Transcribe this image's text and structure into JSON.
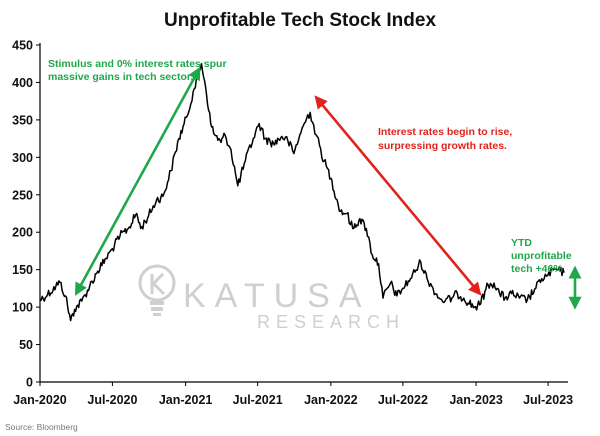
{
  "chart_data": {
    "type": "line",
    "title": "Unprofitable Tech Stock Index",
    "xlabel": "",
    "ylabel": "",
    "ylim": [
      0,
      450
    ],
    "yticks": [
      0,
      50,
      100,
      150,
      200,
      250,
      300,
      350,
      400,
      450
    ],
    "xticks": [
      {
        "label": "Jan-2020",
        "x": "2020-01-01"
      },
      {
        "label": "Jul-2020",
        "x": "2020-07-01"
      },
      {
        "label": "Jan-2021",
        "x": "2021-01-01"
      },
      {
        "label": "Jul-2021",
        "x": "2021-07-01"
      },
      {
        "label": "Jan-2022",
        "x": "2022-01-01"
      },
      {
        "label": "Jul-2022",
        "x": "2022-07-01"
      },
      {
        "label": "Jan-2023",
        "x": "2023-01-01"
      },
      {
        "label": "Jul-2023",
        "x": "2023-07-01"
      }
    ],
    "xlim": [
      "2020-01-01",
      "2023-08-20"
    ],
    "grid": false,
    "series": [
      {
        "name": "",
        "color": "#000000",
        "points": [
          [
            "2020-01-01",
            110
          ],
          [
            "2020-01-20",
            117
          ],
          [
            "2020-02-10",
            128
          ],
          [
            "2020-02-20",
            133
          ],
          [
            "2020-03-05",
            115
          ],
          [
            "2020-03-18",
            82
          ],
          [
            "2020-03-28",
            97
          ],
          [
            "2020-04-15",
            108
          ],
          [
            "2020-05-05",
            128
          ],
          [
            "2020-05-25",
            148
          ],
          [
            "2020-06-15",
            165
          ],
          [
            "2020-07-01",
            178
          ],
          [
            "2020-07-20",
            195
          ],
          [
            "2020-08-10",
            205
          ],
          [
            "2020-08-31",
            225
          ],
          [
            "2020-09-10",
            205
          ],
          [
            "2020-09-30",
            222
          ],
          [
            "2020-10-20",
            243
          ],
          [
            "2020-11-05",
            248
          ],
          [
            "2020-11-25",
            282
          ],
          [
            "2020-12-15",
            325
          ],
          [
            "2021-01-05",
            355
          ],
          [
            "2021-01-20",
            388
          ],
          [
            "2021-02-10",
            425
          ],
          [
            "2021-02-20",
            395
          ],
          [
            "2021-03-05",
            345
          ],
          [
            "2021-03-15",
            330
          ],
          [
            "2021-03-31",
            320
          ],
          [
            "2021-04-10",
            330
          ],
          [
            "2021-04-25",
            310
          ],
          [
            "2021-05-12",
            262
          ],
          [
            "2021-05-31",
            295
          ],
          [
            "2021-06-20",
            325
          ],
          [
            "2021-07-05",
            345
          ],
          [
            "2021-07-20",
            325
          ],
          [
            "2021-08-10",
            318
          ],
          [
            "2021-08-31",
            328
          ],
          [
            "2021-09-15",
            322
          ],
          [
            "2021-09-30",
            305
          ],
          [
            "2021-10-15",
            330
          ],
          [
            "2021-11-01",
            352
          ],
          [
            "2021-11-10",
            360
          ],
          [
            "2021-11-25",
            330
          ],
          [
            "2021-12-15",
            295
          ],
          [
            "2022-01-01",
            272
          ],
          [
            "2022-01-25",
            228
          ],
          [
            "2022-02-10",
            225
          ],
          [
            "2022-02-25",
            205
          ],
          [
            "2022-03-15",
            218
          ],
          [
            "2022-03-31",
            205
          ],
          [
            "2022-04-15",
            170
          ],
          [
            "2022-05-01",
            158
          ],
          [
            "2022-05-12",
            112
          ],
          [
            "2022-05-31",
            132
          ],
          [
            "2022-06-16",
            115
          ],
          [
            "2022-07-01",
            125
          ],
          [
            "2022-07-20",
            138
          ],
          [
            "2022-08-15",
            160
          ],
          [
            "2022-08-31",
            138
          ],
          [
            "2022-09-15",
            125
          ],
          [
            "2022-09-30",
            112
          ],
          [
            "2022-10-15",
            108
          ],
          [
            "2022-11-01",
            112
          ],
          [
            "2022-11-15",
            118
          ],
          [
            "2022-12-01",
            112
          ],
          [
            "2022-12-28",
            100
          ],
          [
            "2023-01-10",
            103
          ],
          [
            "2023-01-31",
            130
          ],
          [
            "2023-02-15",
            132
          ],
          [
            "2023-03-01",
            118
          ],
          [
            "2023-03-15",
            112
          ],
          [
            "2023-03-31",
            118
          ],
          [
            "2023-04-20",
            112
          ],
          [
            "2023-05-10",
            110
          ],
          [
            "2023-05-31",
            125
          ],
          [
            "2023-06-15",
            138
          ],
          [
            "2023-06-30",
            142
          ],
          [
            "2023-07-15",
            150
          ],
          [
            "2023-07-31",
            148
          ],
          [
            "2023-08-10",
            146
          ]
        ]
      }
    ],
    "annotations": [
      {
        "lines": [
          "Stimulus and 0% interest rates spur",
          "massive gains in tech sector."
        ],
        "color": "#1fa84a"
      },
      {
        "lines": [
          "Interest rates begin to rise,",
          "surpressing growth rates."
        ],
        "color": "#e0231c"
      },
      {
        "lines": [
          "YTD",
          "unprofitable",
          "tech +46%"
        ],
        "color": "#1fa84a"
      }
    ]
  },
  "watermark": {
    "name_text": "KATUSA",
    "sub_text": "RESEARCH",
    "color": "#cfcfcf"
  },
  "source_text": "Source: Bloomberg",
  "colors": {
    "green": "#1fa84a",
    "red": "#e0231c",
    "line": "#000000"
  }
}
